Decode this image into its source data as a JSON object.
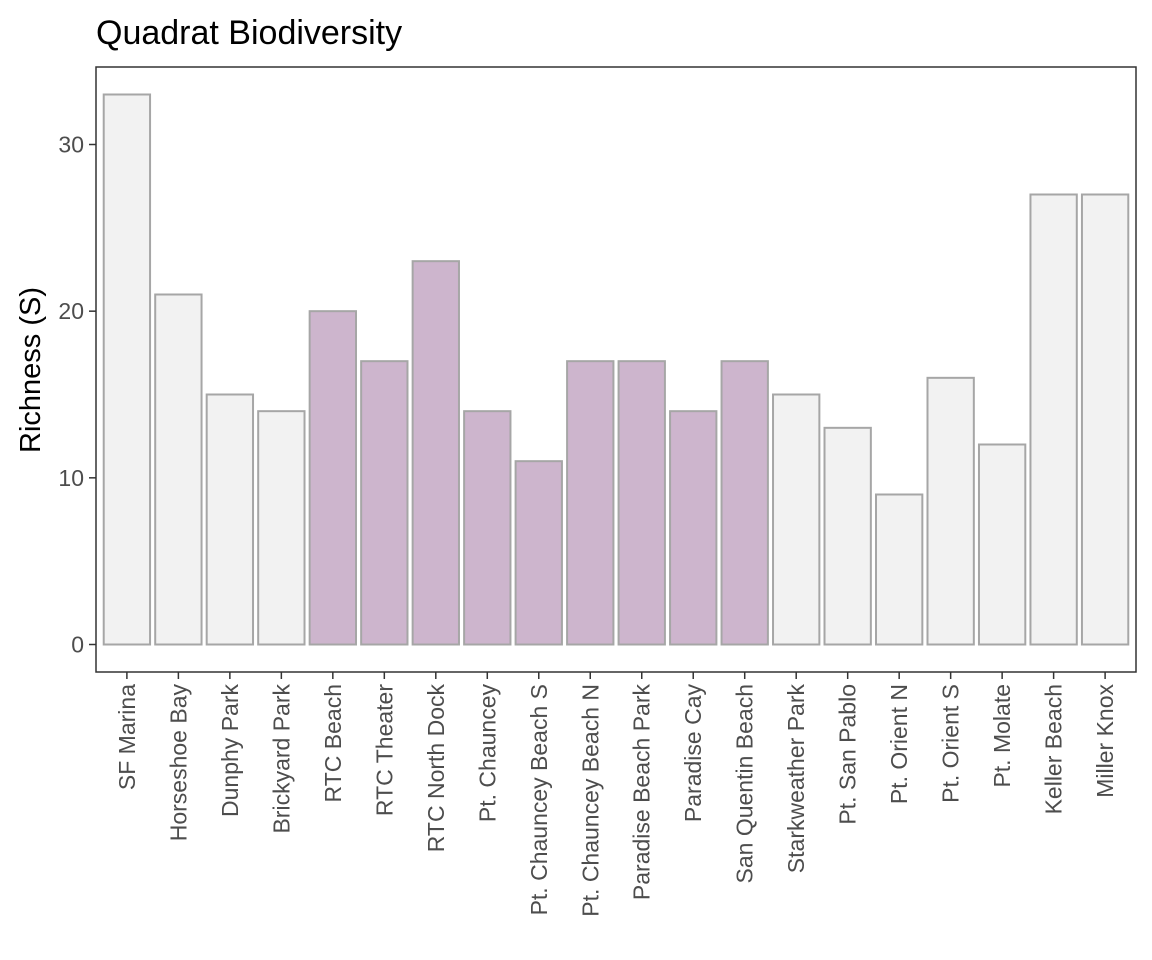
{
  "chart_data": {
    "type": "bar",
    "title": "Quadrat Biodiversity",
    "xlabel": "",
    "ylabel": "Richness (S)",
    "ylim": [
      -1.65,
      34.65
    ],
    "yticks": [
      0,
      10,
      20,
      30
    ],
    "grid": false,
    "legend": "none",
    "categories": [
      "SF Marina",
      "Horseshoe Bay",
      "Dunphy Park",
      "Brickyard Park",
      "RTC Beach",
      "RTC Theater",
      "RTC North Dock",
      "Pt. Chauncey",
      "Pt. Chauncey Beach S",
      "Pt. Chauncey Beach N",
      "Paradise Beach Park",
      "Paradise Cay",
      "San Quentin Beach",
      "Starkweather Park",
      "Pt. San Pablo",
      "Pt. Orient N",
      "Pt. Orient S",
      "Pt. Molate",
      "Keller Beach",
      "Miller Knox"
    ],
    "values": [
      33,
      21,
      15,
      14,
      20,
      17,
      23,
      14,
      11,
      17,
      17,
      14,
      17,
      15,
      13,
      9,
      16,
      12,
      27,
      27
    ],
    "highlighted": [
      false,
      false,
      false,
      false,
      true,
      true,
      true,
      true,
      true,
      true,
      true,
      true,
      true,
      false,
      false,
      false,
      false,
      false,
      false,
      false
    ],
    "colors": {
      "default_fill": "#f2f2f2",
      "highlight_fill": "#cdb5cd",
      "bar_outline": "#a6a6a6",
      "panel_border": "#333333",
      "tick_text": "#4d4d4d"
    }
  }
}
